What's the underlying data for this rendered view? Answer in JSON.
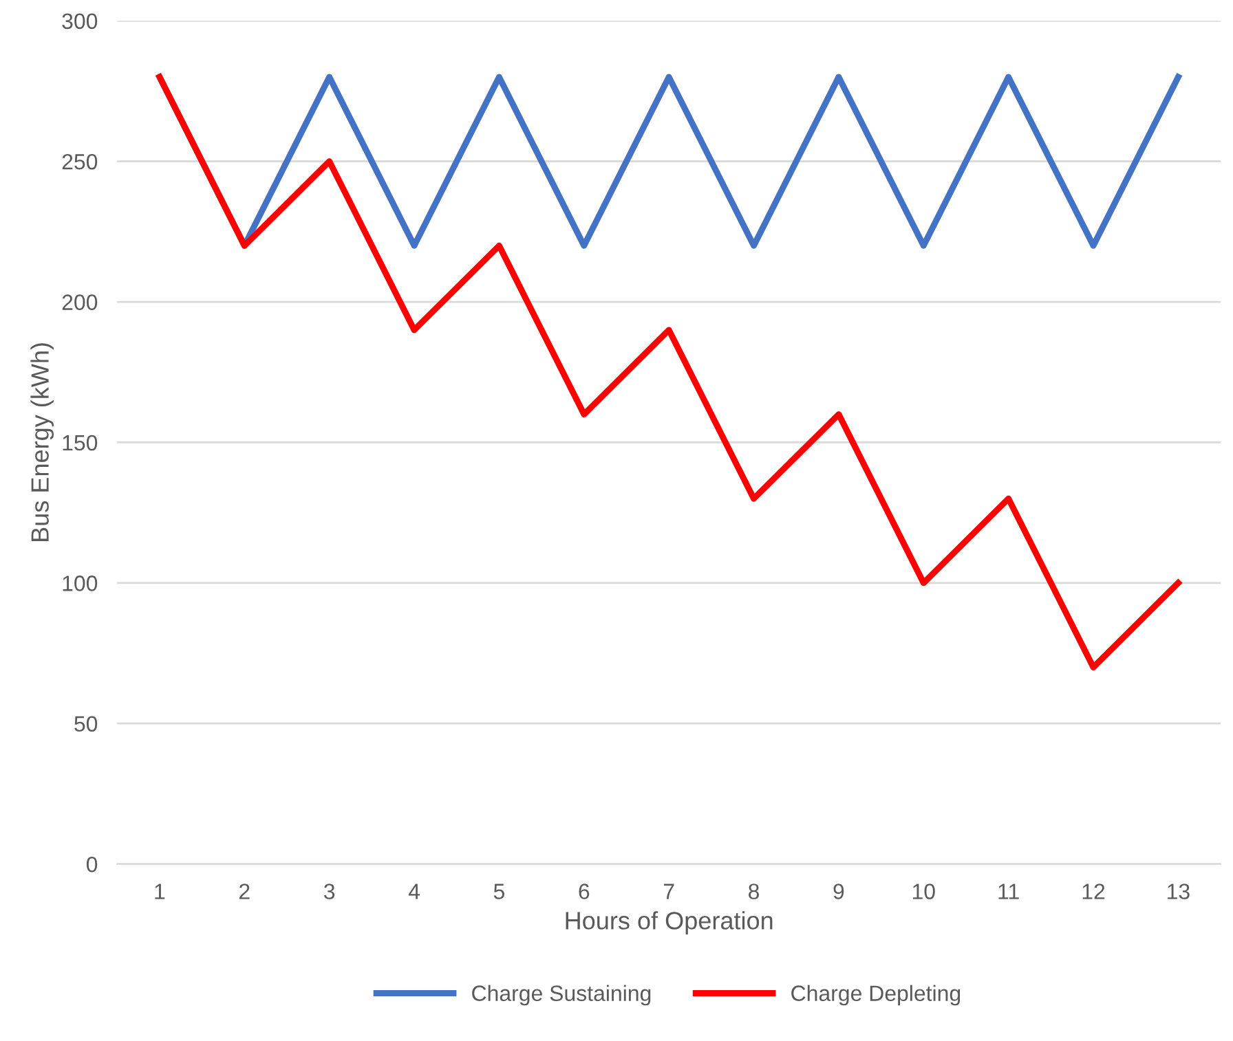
{
  "chart_data": {
    "type": "line",
    "xlabel": "Hours of Operation",
    "ylabel": "Bus Energy (kWh)",
    "categories": [
      "1",
      "2",
      "3",
      "4",
      "5",
      "6",
      "7",
      "8",
      "9",
      "10",
      "11",
      "12",
      "13"
    ],
    "series": [
      {
        "name": "Charge Sustaining",
        "color": "#4472c4",
        "values": [
          280,
          220,
          280,
          220,
          280,
          220,
          280,
          220,
          280,
          220,
          280,
          220,
          280
        ]
      },
      {
        "name": "Charge Depleting",
        "color": "#ff0000",
        "values": [
          280,
          220,
          250,
          190,
          220,
          160,
          190,
          130,
          160,
          100,
          130,
          70,
          100
        ]
      }
    ],
    "ylim": [
      0,
      300
    ],
    "yticks": [
      0,
      50,
      100,
      150,
      200,
      250,
      300
    ],
    "grid": "y",
    "legend": "bottom",
    "marker": "none",
    "line_style": "solid"
  }
}
